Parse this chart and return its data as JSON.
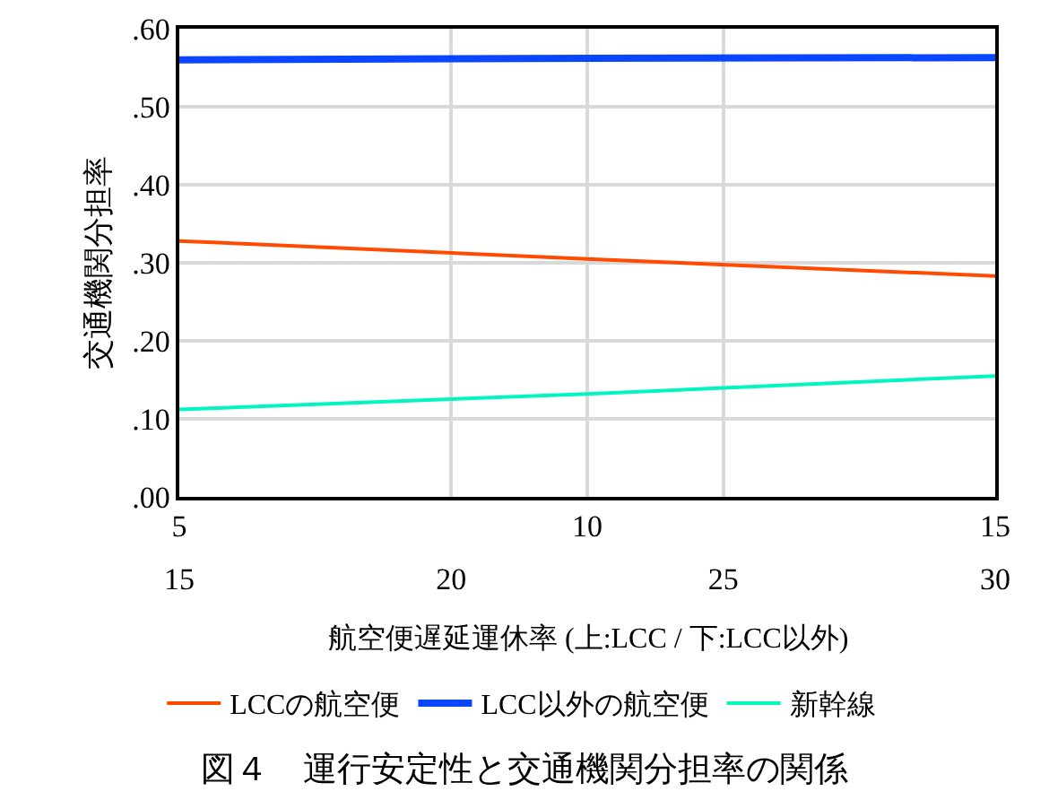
{
  "chart_data": {
    "type": "line",
    "title": "図４　運行安定性と交通機関分担率の関係",
    "xlabel": "航空便遅延運休率 (上:LCC / 下:LCC以外)",
    "ylabel": "交通機関分担率",
    "x": [
      5,
      10,
      15
    ],
    "series": [
      {
        "name": "LCCの航空便",
        "color": "#ff4a00",
        "values": [
          0.328,
          0.305,
          0.283
        ]
      },
      {
        "name": "LCC以外の航空便",
        "color": "#0a46ff",
        "values": [
          0.56,
          0.562,
          0.563
        ]
      },
      {
        "name": "新幹線",
        "color": "#00f5c0",
        "values": [
          0.112,
          0.132,
          0.155
        ]
      }
    ],
    "xlim": [
      5,
      15
    ],
    "xticks": [
      5,
      10,
      15
    ],
    "x2lim": [
      15,
      30
    ],
    "x2ticks": [
      15,
      20,
      25,
      30
    ],
    "ylim": [
      0,
      0.6
    ],
    "yticks": [
      {
        "value": 0,
        "label": ".00"
      },
      {
        "value": 0.1,
        "label": ".10"
      },
      {
        "value": 0.2,
        "label": ".20"
      },
      {
        "value": 0.3,
        "label": ".30"
      },
      {
        "value": 0.4,
        "label": ".40"
      },
      {
        "value": 0.5,
        "label": ".50"
      },
      {
        "value": 0.6,
        "label": ".60"
      }
    ],
    "grid": true,
    "legend": "bottom",
    "marker": "none",
    "line_style": "solid"
  }
}
